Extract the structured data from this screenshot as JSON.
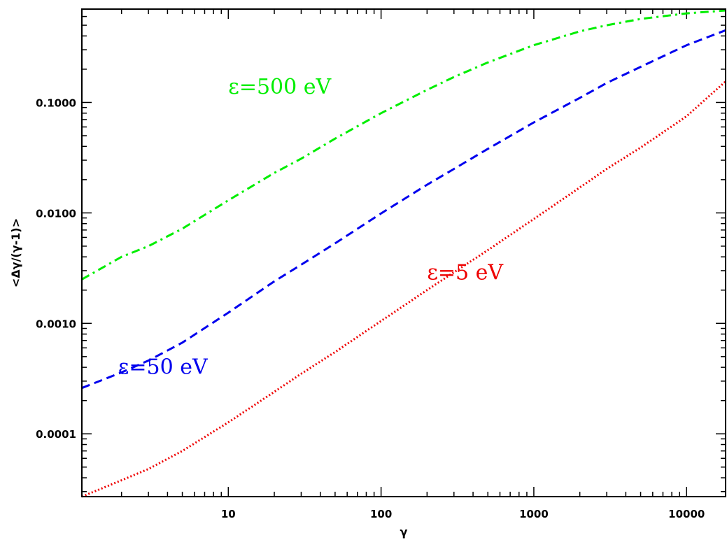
{
  "chart_data": {
    "type": "line",
    "title": "",
    "xlabel": "γ",
    "ylabel": "<Δγ/(γ-1)>",
    "xscale": "log",
    "yscale": "log",
    "xlim": [
      1.1,
      18000
    ],
    "ylim": [
      2.7e-05,
      0.7
    ],
    "xticks": [
      10,
      100,
      1000,
      10000
    ],
    "xtick_labels": [
      "10",
      "100",
      "1000",
      "10000"
    ],
    "yticks": [
      0.0001,
      0.001,
      0.01,
      0.1
    ],
    "ytick_labels": [
      "0.0001",
      "0.0010",
      "0.0100",
      "0.1000"
    ],
    "grid": false,
    "series": [
      {
        "label": "ε=500 eV",
        "color": "#00ee00",
        "dash": "dash-dot",
        "x": [
          1.1,
          2,
          3,
          5,
          10,
          20,
          30,
          50,
          100,
          200,
          300,
          500,
          1000,
          2000,
          3000,
          5000,
          10000,
          18000
        ],
        "y": [
          0.0025,
          0.004,
          0.005,
          0.0072,
          0.013,
          0.023,
          0.031,
          0.047,
          0.08,
          0.13,
          0.17,
          0.23,
          0.33,
          0.44,
          0.5,
          0.57,
          0.64,
          0.68
        ]
      },
      {
        "label": "ε=50 eV",
        "color": "#0000ee",
        "dash": "dashed",
        "x": [
          1.1,
          2,
          3,
          5,
          10,
          20,
          30,
          50,
          100,
          200,
          300,
          500,
          1000,
          2000,
          3000,
          5000,
          10000,
          18000
        ],
        "y": [
          0.00026,
          0.00036,
          0.00046,
          0.00067,
          0.00125,
          0.0024,
          0.0034,
          0.0053,
          0.0099,
          0.018,
          0.025,
          0.038,
          0.066,
          0.11,
          0.15,
          0.21,
          0.33,
          0.45
        ]
      },
      {
        "label": "ε=5 eV",
        "color": "#ee0000",
        "dash": "dotted",
        "x": [
          1.1,
          2,
          3,
          5,
          10,
          20,
          30,
          50,
          100,
          200,
          300,
          500,
          1000,
          2000,
          3000,
          5000,
          10000,
          18000
        ],
        "y": [
          2.7e-05,
          3.8e-05,
          4.8e-05,
          7e-05,
          0.000127,
          0.00024,
          0.00035,
          0.00055,
          0.00105,
          0.002,
          0.0029,
          0.0046,
          0.0088,
          0.017,
          0.025,
          0.039,
          0.075,
          0.155
        ]
      }
    ],
    "annotations": [
      {
        "text": "ε=500 eV",
        "color": "#00ee00",
        "x": 10,
        "y": 0.12
      },
      {
        "text": "ε=50 eV",
        "color": "#0000ee",
        "x": 1.9,
        "y": 0.00035
      },
      {
        "text": "ε=5 eV",
        "color": "#ee0000",
        "x": 200,
        "y": 0.0025
      }
    ]
  }
}
